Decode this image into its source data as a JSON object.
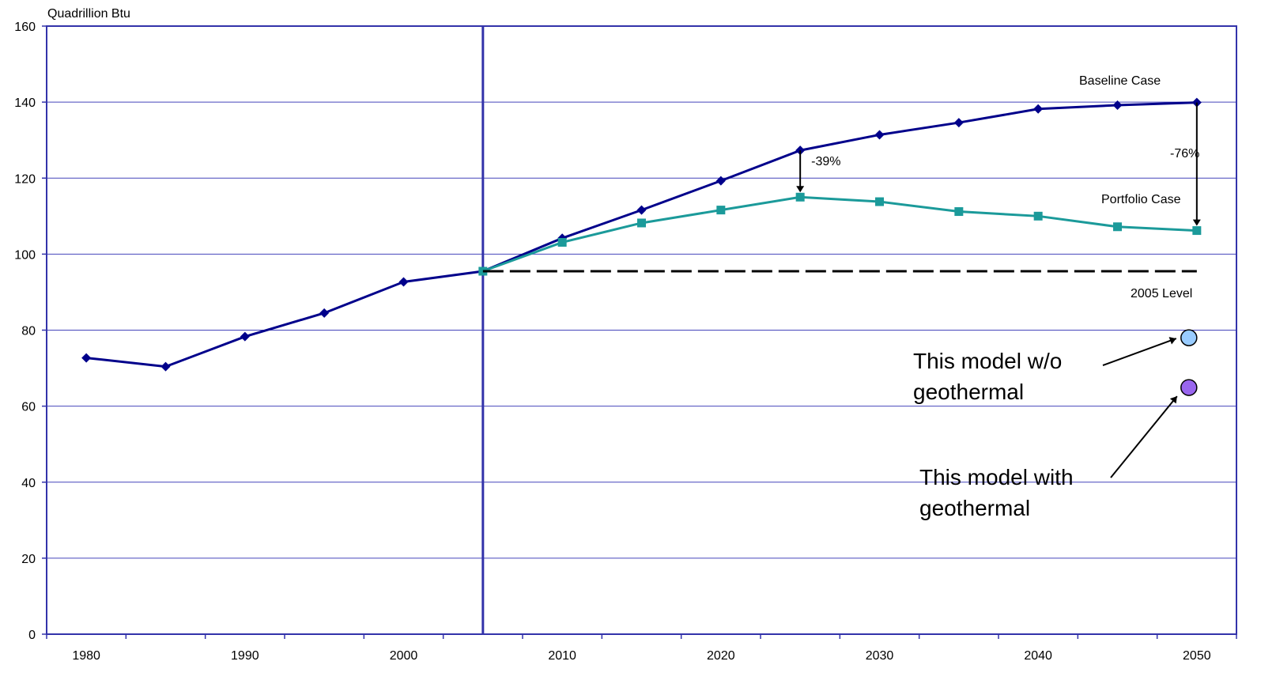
{
  "chart_data": {
    "type": "line",
    "ylabel": "Quadrillion Btu",
    "ylim": [
      0,
      160
    ],
    "yticks": [
      0,
      20,
      40,
      60,
      80,
      100,
      120,
      140,
      160
    ],
    "xlim": [
      1977.5,
      2052.5
    ],
    "xticks": [
      1980,
      1990,
      2000,
      2010,
      2020,
      2030,
      2040,
      2050
    ],
    "grid": "horizontal",
    "divider_year": 2005,
    "series": [
      {
        "name": "Baseline Case",
        "color": "#00008B",
        "marker": "diamond",
        "x": [
          1980,
          1985,
          1990,
          1995,
          2000,
          2005,
          2010,
          2015,
          2020,
          2025,
          2030,
          2035,
          2040,
          2045,
          2050
        ],
        "values": [
          72.7,
          70.4,
          78.3,
          84.5,
          92.7,
          95.5,
          104.2,
          111.6,
          119.3,
          127.3,
          131.4,
          134.6,
          138.2,
          139.2,
          139.9
        ]
      },
      {
        "name": "Portfolio Case",
        "color": "#1B9A9A",
        "marker": "square",
        "x": [
          2005,
          2010,
          2015,
          2020,
          2025,
          2030,
          2035,
          2040,
          2045,
          2050
        ],
        "values": [
          95.5,
          103.1,
          108.2,
          111.6,
          115.0,
          113.8,
          111.2,
          110.0,
          107.2,
          106.2
        ]
      },
      {
        "name": "2005 Level",
        "color": "#000000",
        "style": "dashed",
        "x": [
          2005,
          2050
        ],
        "values": [
          95.5,
          95.5
        ]
      }
    ],
    "points": [
      {
        "x": 2049.5,
        "y": 78.0,
        "color": "#99CCFF",
        "label": [
          "This model w/o",
          "geothermal"
        ]
      },
      {
        "x": 2049.5,
        "y": 64.9,
        "color": "#9966EE",
        "label": [
          "This model with",
          "geothermal"
        ]
      }
    ],
    "annotations": [
      {
        "text": "-39%",
        "x": 2025,
        "from": 127.3,
        "to": 115.0
      },
      {
        "text": "-76%",
        "x": 2050,
        "from": 139.9,
        "to": 106.2
      }
    ]
  }
}
